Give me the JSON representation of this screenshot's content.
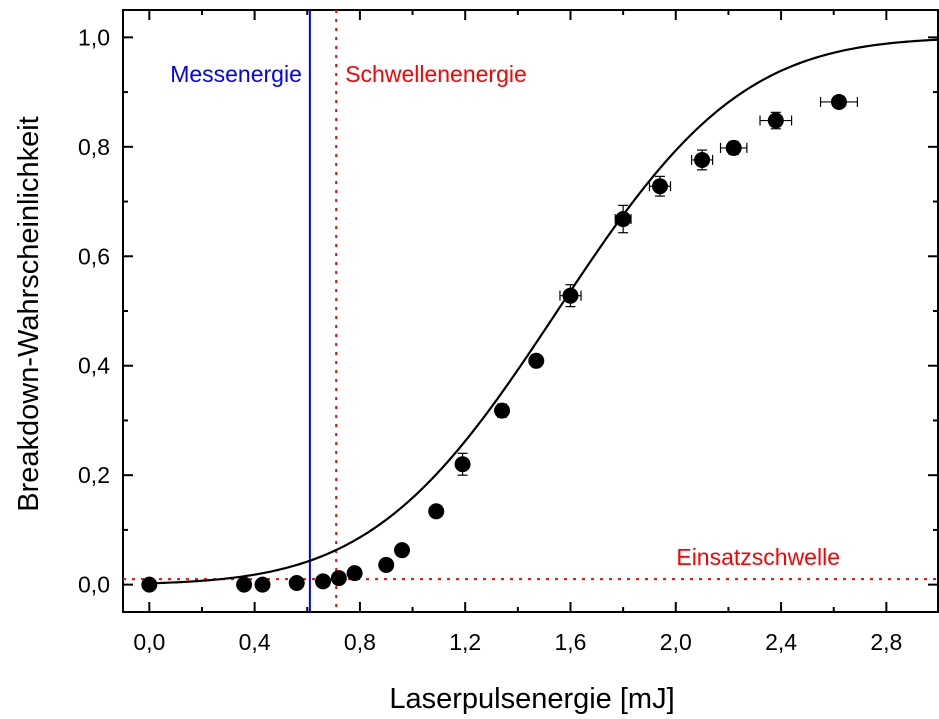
{
  "chart_data": {
    "type": "scatter",
    "xlabel": "Laserpulsenergie [mJ]",
    "ylabel": "Breakdown-Wahrscheinlichkeit",
    "xlim": [
      -0.1,
      3.0
    ],
    "ylim": [
      -0.05,
      1.05
    ],
    "x_ticks": [
      "0,0",
      "0,4",
      "0,8",
      "1,2",
      "1,6",
      "2,0",
      "2,4",
      "2,8"
    ],
    "x_tick_values": [
      0.0,
      0.4,
      0.8,
      1.2,
      1.6,
      2.0,
      2.4,
      2.8
    ],
    "y_ticks": [
      "0,0",
      "0,2",
      "0,4",
      "0,6",
      "0,8",
      "1,0"
    ],
    "y_tick_values": [
      0.0,
      0.2,
      0.4,
      0.6,
      0.8,
      1.0
    ],
    "grid": false,
    "legend": "none",
    "points": [
      {
        "x": 0.0,
        "y": 0.0,
        "xerr": 0.0,
        "yerr": 0.0
      },
      {
        "x": 0.36,
        "y": 0.0,
        "xerr": 0.0,
        "yerr": 0.0
      },
      {
        "x": 0.43,
        "y": 0.0,
        "xerr": 0.0,
        "yerr": 0.0
      },
      {
        "x": 0.56,
        "y": 0.003,
        "xerr": 0.0,
        "yerr": 0.0
      },
      {
        "x": 0.66,
        "y": 0.006,
        "xerr": 0.0,
        "yerr": 0.0
      },
      {
        "x": 0.72,
        "y": 0.012,
        "xerr": 0.0,
        "yerr": 0.0
      },
      {
        "x": 0.78,
        "y": 0.021,
        "xerr": 0.0,
        "yerr": 0.0
      },
      {
        "x": 0.9,
        "y": 0.036,
        "xerr": 0.0,
        "yerr": 0.0
      },
      {
        "x": 0.96,
        "y": 0.063,
        "xerr": 0.0,
        "yerr": 0.0
      },
      {
        "x": 1.09,
        "y": 0.134,
        "xerr": 0.0,
        "yerr": 0.0
      },
      {
        "x": 1.19,
        "y": 0.22,
        "xerr": 0.0,
        "yerr": 0.02
      },
      {
        "x": 1.34,
        "y": 0.318,
        "xerr": 0.02,
        "yerr": 0.012
      },
      {
        "x": 1.47,
        "y": 0.409,
        "xerr": 0.0,
        "yerr": 0.01
      },
      {
        "x": 1.6,
        "y": 0.528,
        "xerr": 0.04,
        "yerr": 0.02
      },
      {
        "x": 1.8,
        "y": 0.668,
        "xerr": 0.03,
        "yerr": 0.025
      },
      {
        "x": 1.94,
        "y": 0.728,
        "xerr": 0.04,
        "yerr": 0.018
      },
      {
        "x": 2.1,
        "y": 0.776,
        "xerr": 0.04,
        "yerr": 0.018
      },
      {
        "x": 2.22,
        "y": 0.798,
        "xerr": 0.05,
        "yerr": 0.012
      },
      {
        "x": 2.38,
        "y": 0.848,
        "xerr": 0.06,
        "yerr": 0.015
      },
      {
        "x": 2.62,
        "y": 0.882,
        "xerr": 0.07,
        "yerr": 0.008
      }
    ],
    "fit_curve": {
      "type": "sigmoid",
      "x0": 1.55,
      "sigma": 0.55,
      "x_min": 0.0,
      "x_max": 3.0
    },
    "annotations": [
      {
        "label": "Messenergie",
        "kind": "vertical",
        "value": 0.61,
        "color": "#0000ff",
        "style": "solid"
      },
      {
        "label": "Schwellenenergie",
        "kind": "vertical",
        "value": 0.71,
        "color": "#ff0000",
        "style": "dotted"
      },
      {
        "label": "Einsatzschwelle",
        "kind": "horizontal",
        "value": 0.01,
        "color": "#ff0000",
        "style": "dotted"
      }
    ]
  }
}
